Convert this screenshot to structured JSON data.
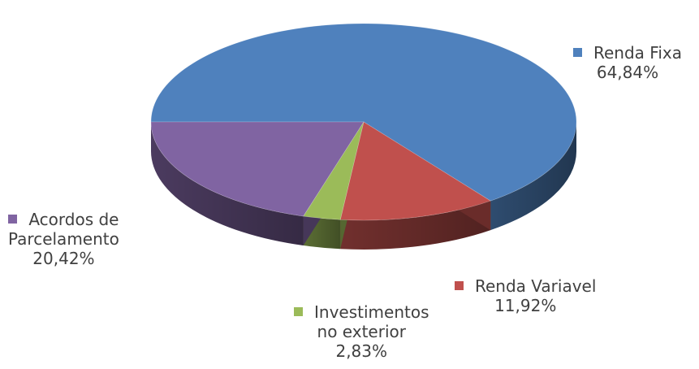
{
  "chart_data": {
    "type": "pie",
    "style": "3d",
    "title": "",
    "legend": "none",
    "slices": [
      {
        "name": "Renda Fixa",
        "value": 64.84,
        "value_label": "64,84%",
        "color": "#4F81BD",
        "label_lines": [
          "Renda Fixa"
        ]
      },
      {
        "name": "Renda Variavel",
        "value": 11.92,
        "value_label": "11,92%",
        "color": "#C0504D",
        "label_lines": [
          "Renda Variavel"
        ]
      },
      {
        "name": "Investimentos no exterior",
        "value": 2.83,
        "value_label": "2,83%",
        "color": "#9BBB59",
        "label_lines": [
          "Investimentos",
          "no exterior"
        ]
      },
      {
        "name": "Acordos de Parcelamento",
        "value": 20.42,
        "value_label": "20,42%",
        "color": "#8064A2",
        "label_lines": [
          "Acordos de",
          "Parcelamento"
        ]
      }
    ]
  }
}
